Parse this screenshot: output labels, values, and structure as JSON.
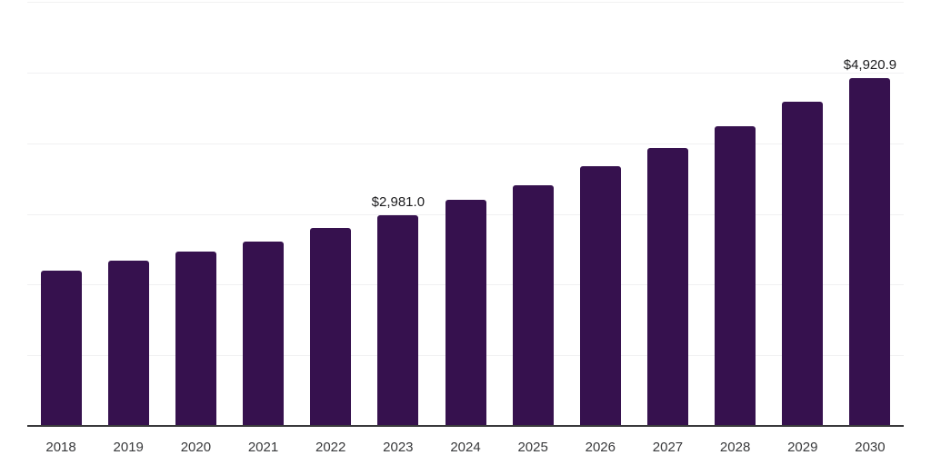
{
  "chart_data": {
    "type": "bar",
    "title": "",
    "xlabel": "",
    "ylabel": "",
    "categories": [
      "2018",
      "2019",
      "2020",
      "2021",
      "2022",
      "2023",
      "2024",
      "2025",
      "2026",
      "2027",
      "2028",
      "2029",
      "2030"
    ],
    "values": [
      2200,
      2335,
      2470,
      2610,
      2800,
      2981.0,
      3195,
      3405,
      3680,
      3935,
      4240,
      4585,
      4920.9
    ],
    "value_labels": {
      "2023": "$2,981.0",
      "2030": "$4,920.9"
    },
    "ylim": [
      0,
      6000
    ],
    "grid_step": 1000,
    "grid": "horizontal",
    "legend": "none",
    "y_axis_ticks_visible": false,
    "bar_color": "#36114E",
    "grid_color": "#f1f1f2",
    "axis_color": "#3a3a3c",
    "value_label_color": "#1b1b1d",
    "tick_label_color": "#38393b"
  }
}
